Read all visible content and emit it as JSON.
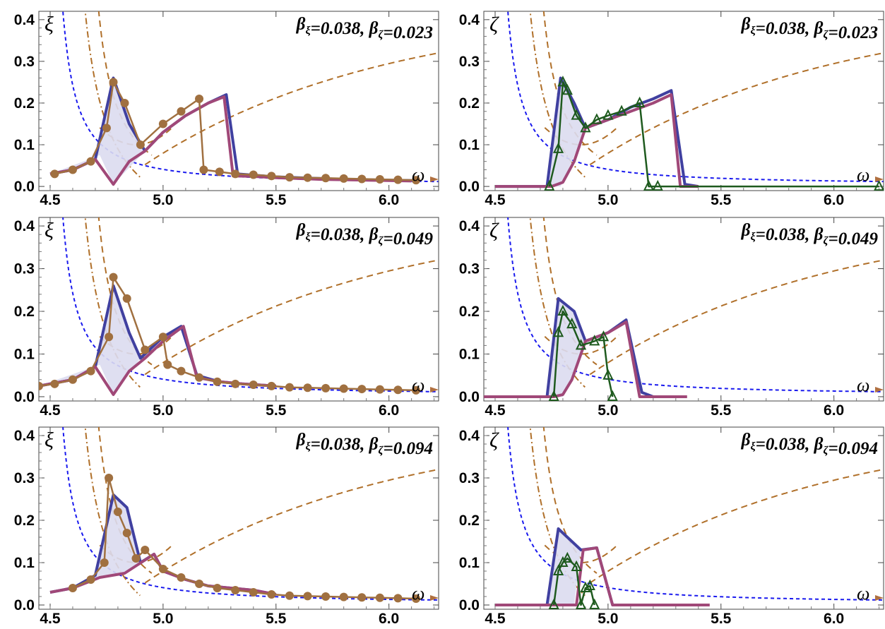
{
  "chart_data": [
    {
      "type": "line",
      "panel": "xi-1",
      "ylabel": "ξ",
      "xlabel": "ω",
      "annotation": {
        "bx": "β",
        "bx_sub": "ξ",
        "bx_val": "=0.038, ",
        "bz": "β",
        "bz_sub": "ζ",
        "bz_val": "=0.023"
      },
      "xlim": [
        4.45,
        6.22
      ],
      "ylim": [
        -0.01,
        0.42
      ],
      "xticks": [
        "4.5",
        "5.0",
        "5.5",
        "6.0"
      ],
      "yticks": [
        "0.0",
        "0.1",
        "0.2",
        "0.3",
        "0.4"
      ],
      "series": [
        {
          "role": "fill",
          "x": [
            4.5,
            4.6,
            4.7,
            4.78,
            4.85,
            4.92,
            4.78,
            4.72
          ],
          "y": [
            0.03,
            0.04,
            0.065,
            0.26,
            0.15,
            0.085,
            0.005,
            0.075
          ]
        },
        {
          "role": "upper",
          "color": "#4040a0",
          "x": [
            4.5,
            4.6,
            4.7,
            4.78,
            4.85,
            4.92,
            5.0,
            5.1,
            5.2,
            5.28,
            5.33,
            5.4,
            5.5,
            5.6,
            5.7,
            5.8,
            5.9,
            6.0,
            6.1
          ],
          "y": [
            0.03,
            0.04,
            0.065,
            0.26,
            0.15,
            0.085,
            0.13,
            0.17,
            0.2,
            0.22,
            0.03,
            0.027,
            0.023,
            0.021,
            0.019,
            0.017,
            0.016,
            0.015,
            0.014
          ]
        },
        {
          "role": "lower",
          "color": "#a04878",
          "x": [
            4.5,
            4.6,
            4.7,
            4.78,
            4.85,
            4.92,
            5.0,
            5.1,
            5.2,
            5.27,
            5.31,
            5.4,
            5.5,
            5.6,
            5.7,
            5.8,
            5.9,
            6.0,
            6.1
          ],
          "y": [
            0.03,
            0.04,
            0.065,
            0.005,
            0.06,
            0.085,
            0.13,
            0.17,
            0.2,
            0.215,
            0.025,
            0.024,
            0.021,
            0.019,
            0.017,
            0.016,
            0.015,
            0.014,
            0.013
          ]
        },
        {
          "role": "sim",
          "color": "#a07040",
          "marker": "circle",
          "x": [
            4.52,
            4.6,
            4.68,
            4.75,
            4.78,
            4.83,
            4.9,
            5.0,
            5.08,
            5.16,
            5.18,
            5.25,
            5.32,
            5.4,
            5.48,
            5.56,
            5.64,
            5.72,
            5.8,
            5.88,
            5.96,
            6.04,
            6.12
          ],
          "y": [
            0.03,
            0.04,
            0.06,
            0.14,
            0.25,
            0.2,
            0.1,
            0.15,
            0.18,
            0.21,
            0.04,
            0.035,
            0.03,
            0.028,
            0.025,
            0.022,
            0.021,
            0.02,
            0.019,
            0.018,
            0.017,
            0.016,
            0.015
          ]
        }
      ]
    },
    {
      "type": "line",
      "panel": "zeta-1",
      "ylabel": "ζ",
      "xlabel": "ω",
      "annotation": {
        "bx": "β",
        "bx_sub": "ξ",
        "bx_val": "=0.038, ",
        "bz": "β",
        "bz_sub": "ζ",
        "bz_val": "=0.023"
      },
      "xlim": [
        4.45,
        6.22
      ],
      "ylim": [
        -0.01,
        0.42
      ],
      "xticks": [
        "4.5",
        "5.0",
        "5.5",
        "6.0"
      ],
      "yticks": [
        "0.0",
        "0.1",
        "0.2",
        "0.3",
        "0.4"
      ],
      "series": [
        {
          "role": "fill",
          "x": [
            4.73,
            4.79,
            4.85,
            4.9,
            4.84,
            4.79
          ],
          "y": [
            0,
            0.26,
            0.2,
            0.14,
            0.06,
            0
          ]
        },
        {
          "role": "upper",
          "color": "#4040a0",
          "x": [
            4.5,
            4.73,
            4.79,
            4.85,
            4.9,
            5.0,
            5.1,
            5.2,
            5.28,
            5.34,
            5.4
          ],
          "y": [
            0,
            0,
            0.26,
            0.2,
            0.14,
            0.16,
            0.19,
            0.21,
            0.23,
            0.005,
            0
          ]
        },
        {
          "role": "lower",
          "color": "#a04878",
          "x": [
            4.5,
            4.75,
            4.8,
            4.85,
            4.9,
            5.0,
            5.1,
            5.2,
            5.28,
            5.32,
            5.4
          ],
          "y": [
            0,
            0,
            0.01,
            0.06,
            0.14,
            0.16,
            0.18,
            0.2,
            0.22,
            0,
            0
          ]
        },
        {
          "role": "sim",
          "color": "#1e5a1e",
          "marker": "triangle",
          "x": [
            4.74,
            4.78,
            4.8,
            4.82,
            4.86,
            4.9,
            4.95,
            5.0,
            5.06,
            5.14,
            5.18,
            5.22,
            6.2
          ],
          "y": [
            0,
            0.09,
            0.25,
            0.23,
            0.17,
            0.14,
            0.16,
            0.17,
            0.18,
            0.2,
            0,
            0,
            0
          ]
        }
      ]
    },
    {
      "type": "line",
      "panel": "xi-2",
      "ylabel": "ξ",
      "xlabel": "ω",
      "annotation": {
        "bx": "β",
        "bx_sub": "ξ",
        "bx_val": "=0.038, ",
        "bz": "β",
        "bz_sub": "ζ",
        "bz_val": "=0.049"
      },
      "xlim": [
        4.45,
        6.22
      ],
      "ylim": [
        -0.01,
        0.42
      ],
      "xticks": [
        "4.5",
        "5.0",
        "5.5",
        "6.0"
      ],
      "yticks": [
        "0.0",
        "0.1",
        "0.2",
        "0.3",
        "0.4"
      ],
      "series": [
        {
          "role": "fill",
          "x": [
            4.45,
            4.6,
            4.7,
            4.78,
            4.85,
            4.9,
            4.78,
            4.72
          ],
          "y": [
            0.025,
            0.04,
            0.07,
            0.26,
            0.15,
            0.09,
            0.005,
            0.075
          ]
        },
        {
          "role": "upper",
          "color": "#4040a0",
          "x": [
            4.45,
            4.6,
            4.7,
            4.78,
            4.85,
            4.9,
            5.0,
            5.08,
            5.15,
            5.25,
            5.35,
            5.5
          ],
          "y": [
            0.025,
            0.04,
            0.07,
            0.26,
            0.15,
            0.09,
            0.14,
            0.165,
            0.05,
            0.035,
            0.03,
            0.025
          ]
        },
        {
          "role": "lower",
          "color": "#a04878",
          "x": [
            4.45,
            4.6,
            4.7,
            4.78,
            4.85,
            4.92,
            5.0,
            5.09,
            5.15,
            5.25,
            5.35,
            5.5
          ],
          "y": [
            0.025,
            0.04,
            0.07,
            0.005,
            0.06,
            0.09,
            0.13,
            0.165,
            0.045,
            0.035,
            0.03,
            0.025
          ]
        },
        {
          "role": "sim",
          "color": "#a07040",
          "marker": "circle",
          "x": [
            4.45,
            4.52,
            4.6,
            4.68,
            4.76,
            4.78,
            4.84,
            4.92,
            5.0,
            5.02,
            5.08,
            5.16,
            5.24,
            5.32,
            5.4,
            5.48,
            5.56,
            5.64,
            5.72,
            5.8,
            5.88,
            5.96,
            6.04,
            6.12
          ],
          "y": [
            0.025,
            0.03,
            0.04,
            0.06,
            0.14,
            0.28,
            0.23,
            0.11,
            0.14,
            0.075,
            0.06,
            0.045,
            0.035,
            0.03,
            0.028,
            0.025,
            0.022,
            0.021,
            0.02,
            0.019,
            0.018,
            0.017,
            0.016,
            0.015
          ]
        }
      ]
    },
    {
      "type": "line",
      "panel": "zeta-2",
      "ylabel": "ζ",
      "xlabel": "ω",
      "annotation": {
        "bx": "β",
        "bx_sub": "ξ",
        "bx_val": "=0.038, ",
        "bz": "β",
        "bz_sub": "ζ",
        "bz_val": "=0.049"
      },
      "xlim": [
        4.45,
        6.22
      ],
      "ylim": [
        -0.01,
        0.42
      ],
      "xticks": [
        "4.5",
        "5.0",
        "5.5",
        "6.0"
      ],
      "yticks": [
        "0.0",
        "0.1",
        "0.2",
        "0.3",
        "0.4"
      ],
      "series": [
        {
          "role": "fill",
          "x": [
            4.73,
            4.78,
            4.85,
            4.9,
            4.84,
            4.8
          ],
          "y": [
            0,
            0.23,
            0.2,
            0.13,
            0.04,
            0
          ]
        },
        {
          "role": "upper",
          "color": "#4040a0",
          "x": [
            4.45,
            4.73,
            4.78,
            4.85,
            4.9,
            5.0,
            5.08,
            5.15,
            5.2,
            5.3
          ],
          "y": [
            0,
            0,
            0.23,
            0.2,
            0.13,
            0.15,
            0.18,
            0.01,
            0,
            0
          ]
        },
        {
          "role": "lower",
          "color": "#a04878",
          "x": [
            4.45,
            4.76,
            4.8,
            4.84,
            4.9,
            5.0,
            5.08,
            5.14,
            5.2,
            5.35
          ],
          "y": [
            0,
            0,
            0.005,
            0.04,
            0.13,
            0.15,
            0.175,
            0,
            0,
            0
          ]
        },
        {
          "role": "sim",
          "color": "#1e5a1e",
          "marker": "triangle",
          "x": [
            4.76,
            4.78,
            4.8,
            4.84,
            4.88,
            4.94,
            4.98,
            5.0,
            5.02
          ],
          "y": [
            0,
            0.15,
            0.2,
            0.17,
            0.12,
            0.13,
            0.14,
            0.05,
            0
          ]
        }
      ]
    },
    {
      "type": "line",
      "panel": "xi-3",
      "ylabel": "ξ",
      "xlabel": "ω",
      "annotation": {
        "bx": "β",
        "bx_sub": "ξ",
        "bx_val": "=0.038, ",
        "bz": "β",
        "bz_sub": "ζ",
        "bz_val": "=0.094"
      },
      "xlim": [
        4.45,
        6.22
      ],
      "ylim": [
        -0.01,
        0.42
      ],
      "xticks": [
        "4.5",
        "5.0",
        "5.5",
        "6.0"
      ],
      "yticks": [
        "0.0",
        "0.1",
        "0.2",
        "0.3",
        "0.4"
      ],
      "series": [
        {
          "role": "fill",
          "x": [
            4.5,
            4.6,
            4.7,
            4.78,
            4.84,
            4.9,
            4.83,
            4.72
          ],
          "y": [
            0.03,
            0.04,
            0.07,
            0.26,
            0.23,
            0.1,
            0.075,
            0.065
          ]
        },
        {
          "role": "upper",
          "color": "#4040a0",
          "x": [
            4.5,
            4.6,
            4.7,
            4.78,
            4.84,
            4.9,
            4.96,
            5.0,
            5.1,
            5.2,
            5.3,
            5.4,
            5.5
          ],
          "y": [
            0.03,
            0.04,
            0.07,
            0.26,
            0.23,
            0.1,
            0.12,
            0.08,
            0.06,
            0.045,
            0.04,
            0.035,
            0.025
          ]
        },
        {
          "role": "lower",
          "color": "#a04878",
          "x": [
            4.5,
            4.6,
            4.72,
            4.83,
            4.96,
            5.0,
            5.1,
            5.2,
            5.3,
            5.4,
            5.5
          ],
          "y": [
            0.03,
            0.04,
            0.065,
            0.075,
            0.12,
            0.08,
            0.06,
            0.045,
            0.04,
            0.035,
            0.025
          ]
        },
        {
          "role": "sim",
          "color": "#a07040",
          "marker": "circle",
          "x": [
            4.6,
            4.68,
            4.74,
            4.76,
            4.8,
            4.84,
            4.88,
            4.92,
            5.0,
            5.08,
            5.16,
            5.24,
            5.32,
            5.4,
            5.48,
            5.56,
            5.64,
            5.72,
            5.8,
            5.88,
            5.96,
            6.04,
            6.12
          ],
          "y": [
            0.04,
            0.06,
            0.1,
            0.3,
            0.22,
            0.17,
            0.11,
            0.13,
            0.085,
            0.065,
            0.05,
            0.04,
            0.035,
            0.03,
            0.025,
            0.022,
            0.021,
            0.02,
            0.019,
            0.018,
            0.017,
            0.016,
            0.015
          ]
        }
      ]
    },
    {
      "type": "line",
      "panel": "zeta-3",
      "ylabel": "ζ",
      "xlabel": "ω",
      "annotation": {
        "bx": "β",
        "bx_sub": "ξ",
        "bx_val": "=0.038, ",
        "bz": "β",
        "bz_sub": "ζ",
        "bz_val": "=0.094"
      },
      "xlim": [
        4.45,
        6.22
      ],
      "ylim": [
        -0.01,
        0.42
      ],
      "xticks": [
        "4.5",
        "5.0",
        "5.5",
        "6.0"
      ],
      "yticks": [
        "0.0",
        "0.1",
        "0.2",
        "0.3",
        "0.4"
      ],
      "series": [
        {
          "role": "fill",
          "x": [
            4.73,
            4.78,
            4.88,
            4.85,
            4.76
          ],
          "y": [
            0,
            0.18,
            0.13,
            0,
            0
          ]
        },
        {
          "role": "upper",
          "color": "#4040a0",
          "x": [
            4.5,
            4.73,
            4.78,
            4.88,
            4.95,
            5.02,
            5.1
          ],
          "y": [
            0,
            0,
            0.18,
            0.13,
            0.135,
            0,
            0
          ]
        },
        {
          "role": "lower",
          "color": "#a04878",
          "x": [
            4.5,
            4.86,
            4.89,
            4.95,
            5.02,
            5.3,
            5.45
          ],
          "y": [
            0,
            0,
            0.13,
            0.135,
            0,
            0,
            0
          ]
        },
        {
          "role": "sim",
          "color": "#1e5a1e",
          "marker": "triangle",
          "x": [
            4.76,
            4.78,
            4.8,
            4.82,
            4.86,
            4.88,
            4.9,
            4.92,
            4.94
          ],
          "y": [
            0,
            0.08,
            0.1,
            0.11,
            0.09,
            0,
            0.04,
            0.045,
            0
          ]
        }
      ]
    }
  ]
}
